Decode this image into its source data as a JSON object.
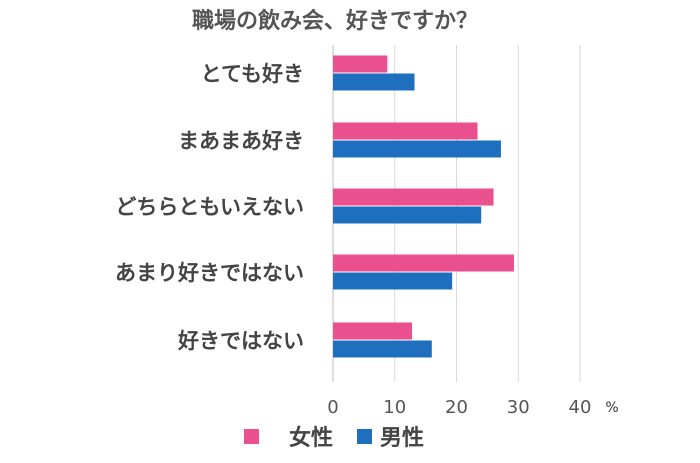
{
  "chart_data": {
    "type": "bar",
    "orientation": "horizontal",
    "title": "職場の飲み会、好きですか？",
    "categories": [
      "とても好き",
      "まあまあ好き",
      "どちらともいえない",
      "あまり好きではない",
      "好きではない"
    ],
    "series": [
      {
        "name": "女性",
        "color": "#ea4f8e",
        "values": [
          8.8,
          23.4,
          26.0,
          29.3,
          12.8
        ]
      },
      {
        "name": "男性",
        "color": "#1f6fbf",
        "values": [
          13.2,
          27.2,
          24.0,
          19.3,
          16.0
        ]
      }
    ],
    "xlim": [
      0,
      40
    ],
    "x_ticks": [
      "0",
      "10",
      "20",
      "30",
      "40"
    ],
    "x_unit": "%",
    "grid": true,
    "legend_position": "bottom"
  }
}
